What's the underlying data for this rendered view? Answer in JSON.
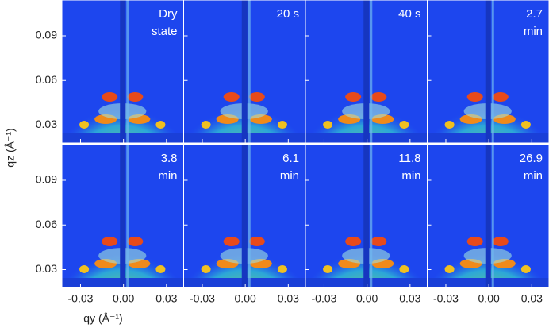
{
  "chart_data": {
    "type": "heatmap",
    "xlabel": "qy (Å⁻¹)",
    "ylabel": "qz (Å⁻¹)",
    "xlim": [
      -0.043,
      0.042
    ],
    "ylim": [
      0.018,
      0.114
    ],
    "xticks": [
      -0.03,
      {
        "value": 0,
        "label": "0.00"
      },
      0.03
    ],
    "yticks": [
      0.03,
      0.06,
      0.09
    ],
    "panels": [
      [
        "Dry",
        "state"
      ],
      [
        "20 s"
      ],
      [
        "40 s"
      ],
      [
        "2.7",
        "min"
      ],
      [
        "3.8",
        "min"
      ],
      [
        "6.1",
        "min"
      ],
      [
        "11.8",
        "min"
      ],
      [
        "26.9",
        "min"
      ]
    ]
  }
}
